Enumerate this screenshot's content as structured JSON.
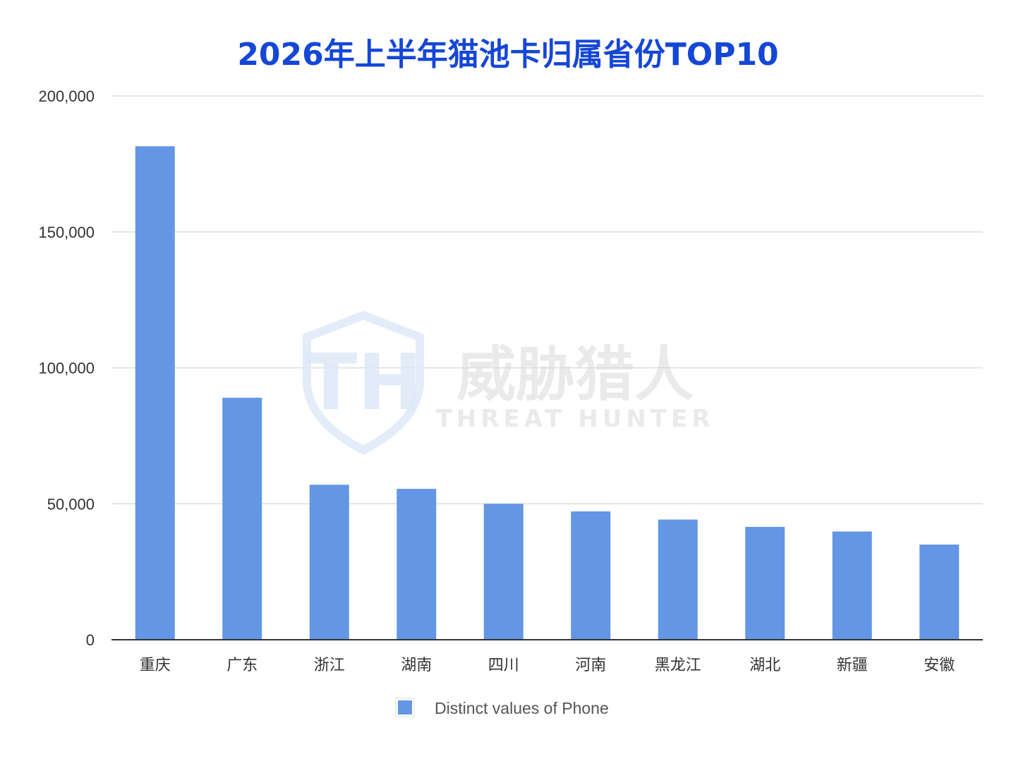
{
  "chart_data": {
    "type": "bar",
    "title": "2026年上半年猫池卡归属省份TOP10",
    "categories": [
      "重庆",
      "广东",
      "浙江",
      "湖南",
      "四川",
      "河南",
      "黑龙江",
      "湖北",
      "新疆",
      "安徽"
    ],
    "series": [
      {
        "name": "Distinct values of Phone",
        "values": [
          181500,
          89000,
          57000,
          55500,
          50000,
          47200,
          44200,
          41500,
          39800,
          35000
        ],
        "color": "#6396e4"
      }
    ],
    "ylim": [
      0,
      200000
    ],
    "yticks": [
      0,
      50000,
      100000,
      150000,
      200000
    ],
    "ytick_labels": [
      "0",
      "50,000",
      "100,000",
      "150,000",
      "200,000"
    ],
    "grid": true,
    "legend_position": "bottom"
  },
  "watermark": {
    "logo_letters": "TH",
    "cn_text": "威胁猎人",
    "en_text": "THREAT HUNTER"
  }
}
